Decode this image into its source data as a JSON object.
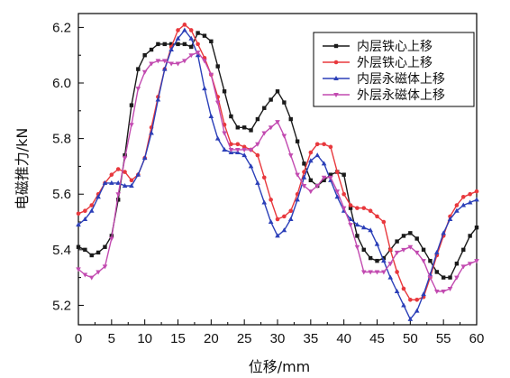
{
  "chart_data": {
    "type": "line",
    "xlabel": "位移/mm",
    "ylabel": "电磁推力/kN",
    "xlim": [
      0,
      60
    ],
    "ylim": [
      5.13,
      6.25
    ],
    "xticks": [
      0,
      5,
      10,
      15,
      20,
      25,
      30,
      35,
      40,
      45,
      50,
      55,
      60
    ],
    "yticks": [
      5.2,
      5.4,
      5.6,
      5.8,
      6.0,
      6.2
    ],
    "ytick_labels": [
      "5.2",
      "5.4",
      "5.6",
      "5.8",
      "6.0",
      "6.2"
    ],
    "grid": false,
    "legend_position": "top-right",
    "x": [
      0,
      1,
      2,
      3,
      4,
      5,
      6,
      7,
      8,
      9,
      10,
      11,
      12,
      13,
      14,
      15,
      16,
      17,
      18,
      19,
      20,
      21,
      22,
      23,
      24,
      25,
      26,
      27,
      28,
      29,
      30,
      31,
      32,
      33,
      34,
      35,
      36,
      37,
      38,
      39,
      40,
      41,
      42,
      43,
      44,
      45,
      46,
      47,
      48,
      49,
      50,
      51,
      52,
      53,
      54,
      55,
      56,
      57,
      58,
      59,
      60
    ],
    "series": [
      {
        "name": "内层铁心上移",
        "color": "#1a1a1a",
        "marker": "square",
        "values": [
          5.41,
          5.4,
          5.38,
          5.39,
          5.41,
          5.45,
          5.58,
          5.74,
          5.92,
          6.05,
          6.1,
          6.12,
          6.14,
          6.14,
          6.14,
          6.14,
          6.14,
          6.13,
          6.18,
          6.17,
          6.15,
          6.06,
          5.97,
          5.88,
          5.84,
          5.84,
          5.83,
          5.87,
          5.91,
          5.94,
          5.97,
          5.93,
          5.87,
          5.79,
          5.71,
          5.65,
          5.63,
          5.65,
          5.67,
          5.68,
          5.67,
          5.55,
          5.45,
          5.4,
          5.37,
          5.36,
          5.37,
          5.4,
          5.43,
          5.45,
          5.46,
          5.44,
          5.4,
          5.36,
          5.32,
          5.3,
          5.3,
          5.35,
          5.4,
          5.45,
          5.48
        ]
      },
      {
        "name": "外层铁心上移",
        "color": "#e8383d",
        "marker": "circle",
        "values": [
          5.53,
          5.54,
          5.56,
          5.6,
          5.64,
          5.67,
          5.69,
          5.68,
          5.65,
          5.67,
          5.73,
          5.84,
          5.95,
          6.05,
          6.13,
          6.19,
          6.21,
          6.19,
          6.14,
          6.09,
          6.03,
          5.95,
          5.85,
          5.78,
          5.78,
          5.77,
          5.76,
          5.74,
          5.66,
          5.58,
          5.51,
          5.52,
          5.54,
          5.6,
          5.68,
          5.75,
          5.78,
          5.78,
          5.77,
          5.68,
          5.6,
          5.56,
          5.55,
          5.55,
          5.54,
          5.52,
          5.5,
          5.4,
          5.32,
          5.26,
          5.22,
          5.22,
          5.23,
          5.3,
          5.38,
          5.45,
          5.52,
          5.56,
          5.59,
          5.6,
          5.61
        ]
      },
      {
        "name": "内层永磁体上移",
        "color": "#2b3fb8",
        "marker": "triangle",
        "values": [
          5.49,
          5.51,
          5.54,
          5.59,
          5.64,
          5.64,
          5.64,
          5.63,
          5.63,
          5.67,
          5.73,
          5.82,
          5.94,
          6.05,
          6.12,
          6.16,
          6.19,
          6.16,
          6.1,
          5.98,
          5.88,
          5.8,
          5.76,
          5.75,
          5.75,
          5.74,
          5.7,
          5.64,
          5.57,
          5.5,
          5.45,
          5.47,
          5.51,
          5.58,
          5.66,
          5.72,
          5.74,
          5.71,
          5.65,
          5.59,
          5.54,
          5.51,
          5.49,
          5.48,
          5.47,
          5.42,
          5.36,
          5.3,
          5.25,
          5.2,
          5.15,
          5.18,
          5.24,
          5.31,
          5.39,
          5.46,
          5.51,
          5.54,
          5.56,
          5.57,
          5.58
        ]
      },
      {
        "name": "外层永磁体上移",
        "color": "#c24ab0",
        "marker": "triangle-down",
        "values": [
          5.33,
          5.31,
          5.3,
          5.32,
          5.34,
          5.44,
          5.6,
          5.73,
          5.85,
          5.98,
          6.04,
          6.07,
          6.08,
          6.08,
          6.07,
          6.07,
          6.08,
          6.1,
          6.11,
          6.08,
          6.03,
          5.93,
          5.82,
          5.76,
          5.76,
          5.76,
          5.76,
          5.78,
          5.82,
          5.84,
          5.86,
          5.81,
          5.74,
          5.67,
          5.63,
          5.61,
          5.63,
          5.66,
          5.66,
          5.61,
          5.55,
          5.49,
          5.41,
          5.32,
          5.32,
          5.32,
          5.32,
          5.35,
          5.39,
          5.4,
          5.41,
          5.39,
          5.36,
          5.3,
          5.25,
          5.25,
          5.26,
          5.3,
          5.34,
          5.35,
          5.36
        ]
      }
    ]
  }
}
